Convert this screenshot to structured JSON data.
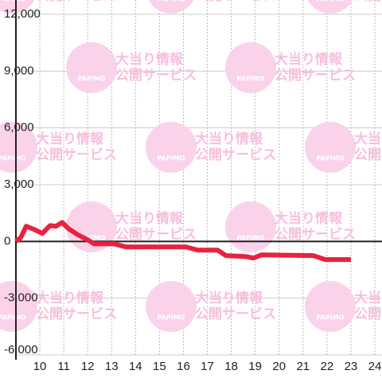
{
  "chart_data": {
    "type": "line",
    "watermark": {
      "logo": "PAPIMO",
      "line1": "大当り情報",
      "line2": "公開サービス"
    },
    "xlim": [
      9,
      24.3
    ],
    "ylim": [
      -6000,
      12000
    ],
    "xticks": [
      10,
      11,
      12,
      13,
      14,
      15,
      16,
      17,
      18,
      19,
      20,
      21,
      22,
      23,
      24
    ],
    "yticks": [
      {
        "value": -6000,
        "label": "-6,000"
      },
      {
        "value": -3000,
        "label": "-3,000"
      },
      0,
      {
        "value": 3000,
        "label": "3,000"
      },
      {
        "value": 6000,
        "label": "6,000"
      },
      {
        "value": 9000,
        "label": "9,000"
      },
      {
        "value": 12000,
        "label": "12,000"
      }
    ],
    "grid": true,
    "series": [
      {
        "color": "#e8223f",
        "x": [
          9,
          9.2,
          9.43,
          9.77,
          10.1,
          10.43,
          10.67,
          10.93,
          11.2,
          11.6,
          11.93,
          12.27,
          13.1,
          13.6,
          16.1,
          16.6,
          17.43,
          17.77,
          18.6,
          18.93,
          19.27,
          21.43,
          21.93,
          23.0
        ],
        "values": [
          0,
          200,
          800,
          630,
          420,
          840,
          800,
          1000,
          670,
          340,
          130,
          -130,
          -130,
          -290,
          -290,
          -460,
          -460,
          -750,
          -800,
          -880,
          -710,
          -750,
          -960,
          -960
        ]
      }
    ]
  }
}
